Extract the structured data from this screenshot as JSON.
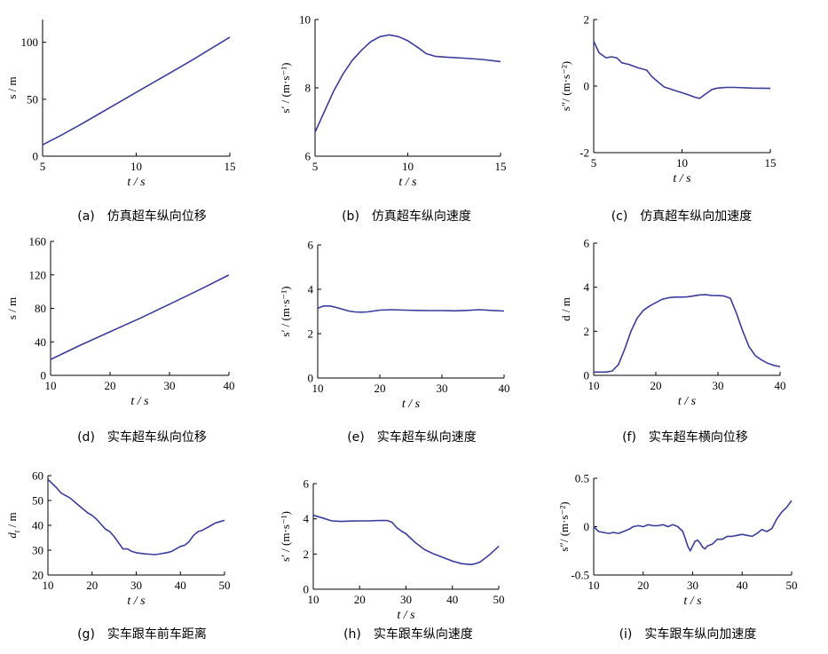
{
  "chart_data": [
    {
      "id": "a",
      "type": "line",
      "caption": "(a)　仿真超车纵向位移",
      "xlabel": "t / s",
      "ylabel": "s / m",
      "xlim": [
        5,
        15
      ],
      "ylim": [
        0,
        120
      ],
      "xticks": [
        5,
        10,
        15
      ],
      "yticks": [
        0,
        50,
        100
      ],
      "x": [
        5,
        6,
        7,
        8,
        9,
        10,
        11,
        12,
        13,
        14,
        15
      ],
      "y": [
        10,
        18.5,
        27.5,
        37,
        46.5,
        56,
        65.5,
        75,
        84.5,
        94.5,
        104.5
      ]
    },
    {
      "id": "b",
      "type": "line",
      "caption": "(b)　仿真超车纵向速度",
      "xlabel": "t / s",
      "ylabel": "s′ / (m·s⁻¹)",
      "xlim": [
        5,
        15
      ],
      "ylim": [
        6,
        10
      ],
      "xticks": [
        5,
        10,
        15
      ],
      "yticks": [
        6,
        8,
        10
      ],
      "x": [
        5,
        5.5,
        6,
        6.5,
        7,
        7.5,
        8,
        8.5,
        9,
        9.5,
        10,
        10.5,
        11,
        11.5,
        12,
        13,
        14,
        15
      ],
      "y": [
        6.7,
        7.3,
        7.9,
        8.4,
        8.8,
        9.1,
        9.35,
        9.5,
        9.55,
        9.5,
        9.38,
        9.2,
        9.0,
        8.92,
        8.9,
        8.87,
        8.83,
        8.77
      ]
    },
    {
      "id": "c",
      "type": "line",
      "caption": "(c)　仿真超车纵向加速度",
      "xlabel": "t / s",
      "ylabel": "s″/ (m·s⁻²)",
      "xlim": [
        5,
        15
      ],
      "ylim": [
        -2,
        2
      ],
      "xticks": [
        5,
        10,
        15
      ],
      "yticks": [
        -2,
        0,
        2
      ],
      "x": [
        5,
        5.3,
        5.7,
        6,
        6.3,
        6.6,
        7,
        7.5,
        8,
        8.3,
        8.7,
        9,
        9.3,
        9.7,
        10,
        10.4,
        10.7,
        11,
        11.3,
        11.7,
        12,
        12.5,
        13,
        14,
        15
      ],
      "y": [
        1.35,
        1.0,
        0.85,
        0.88,
        0.85,
        0.7,
        0.65,
        0.55,
        0.48,
        0.28,
        0.1,
        -0.03,
        -0.08,
        -0.15,
        -0.2,
        -0.27,
        -0.33,
        -0.37,
        -0.25,
        -0.1,
        -0.06,
        -0.04,
        -0.04,
        -0.06,
        -0.07
      ]
    },
    {
      "id": "d",
      "type": "line",
      "caption": "(d)　实车超车纵向位移",
      "xlabel": "t / s",
      "ylabel": "s / m",
      "xlim": [
        10,
        40
      ],
      "ylim": [
        0,
        160
      ],
      "xticks": [
        10,
        20,
        30,
        40
      ],
      "yticks": [
        0,
        40,
        80,
        120,
        160
      ],
      "x": [
        10,
        15,
        20,
        25,
        30,
        35,
        40
      ],
      "y": [
        19,
        36,
        52,
        68,
        85,
        102,
        120
      ]
    },
    {
      "id": "e",
      "type": "line",
      "caption": "(e)　实车超车纵向速度",
      "xlabel": "t / s",
      "ylabel": "s′ / (m·s⁻¹)",
      "xlim": [
        10,
        40
      ],
      "ylim": [
        0,
        6
      ],
      "xticks": [
        10,
        20,
        30,
        40
      ],
      "yticks": [
        0,
        2,
        4,
        6
      ],
      "x": [
        10,
        11,
        12,
        13,
        14,
        15,
        16,
        17,
        18,
        19,
        20,
        22,
        24,
        26,
        28,
        30,
        32,
        34,
        36,
        38,
        40
      ],
      "y": [
        3.15,
        3.25,
        3.25,
        3.18,
        3.1,
        3.02,
        2.98,
        2.97,
        2.98,
        3.02,
        3.06,
        3.08,
        3.06,
        3.05,
        3.04,
        3.04,
        3.03,
        3.05,
        3.08,
        3.05,
        3.02
      ]
    },
    {
      "id": "f",
      "type": "line",
      "caption": "(f)　实车超车横向位移",
      "xlabel": "t / s",
      "ylabel": "d / m",
      "xlim": [
        10,
        40
      ],
      "ylim": [
        0,
        6
      ],
      "xticks": [
        10,
        20,
        30,
        40
      ],
      "yticks": [
        0,
        2,
        4,
        6
      ],
      "x": [
        10,
        12,
        13,
        14,
        15,
        16,
        17,
        18,
        19,
        20,
        21,
        22,
        23,
        24,
        25,
        26,
        27,
        28,
        29,
        30,
        31,
        32,
        33,
        34,
        35,
        36,
        37,
        38,
        39,
        40
      ],
      "y": [
        0.15,
        0.15,
        0.2,
        0.5,
        1.2,
        2.0,
        2.6,
        2.95,
        3.15,
        3.3,
        3.45,
        3.52,
        3.55,
        3.55,
        3.56,
        3.6,
        3.65,
        3.66,
        3.63,
        3.62,
        3.6,
        3.5,
        2.8,
        2.0,
        1.3,
        0.9,
        0.7,
        0.55,
        0.45,
        0.4
      ]
    },
    {
      "id": "g",
      "type": "line",
      "caption": "(g)　实车跟车前车距离",
      "xlabel": "t / s",
      "ylabel": "d_t / m",
      "ylabel_main": "d",
      "ylabel_sub": "t",
      "ylabel_unit": " / m",
      "xlim": [
        10,
        50
      ],
      "ylim": [
        20,
        60
      ],
      "xticks": [
        10,
        20,
        30,
        40,
        50
      ],
      "yticks": [
        20,
        30,
        40,
        50,
        60
      ],
      "x": [
        10,
        12,
        13,
        14,
        15,
        16,
        17,
        18,
        19,
        20,
        21,
        22,
        23,
        24,
        25,
        26,
        27,
        28,
        29,
        30,
        31,
        32,
        33,
        34,
        35,
        36,
        37,
        38,
        39,
        40,
        41,
        42,
        43,
        44,
        45,
        46,
        47,
        48,
        49,
        50
      ],
      "y": [
        58.5,
        55,
        53,
        52,
        51,
        49.5,
        48,
        46.5,
        45,
        44,
        42.5,
        40.5,
        38.5,
        37.5,
        35.5,
        33,
        30.5,
        30.5,
        29.5,
        29,
        28.7,
        28.5,
        28.4,
        28.2,
        28.4,
        28.7,
        29,
        29.5,
        30.5,
        31.5,
        32,
        33.5,
        36,
        37.5,
        38,
        39,
        40,
        41,
        41.5,
        42
      ]
    },
    {
      "id": "h",
      "type": "line",
      "caption": "(h)　实车跟车纵向速度",
      "xlabel": "t / s",
      "ylabel": "s′ / (m·s⁻¹)",
      "xlim": [
        10,
        50
      ],
      "ylim": [
        0,
        6
      ],
      "xticks": [
        10,
        20,
        30,
        40,
        50
      ],
      "yticks": [
        0,
        2,
        4,
        6
      ],
      "x": [
        10,
        12,
        14,
        16,
        18,
        20,
        22,
        24,
        26,
        27,
        28,
        29,
        30,
        31,
        32,
        34,
        36,
        38,
        40,
        42,
        44,
        45,
        46,
        47,
        48,
        49,
        50
      ],
      "y": [
        4.2,
        4.05,
        3.88,
        3.85,
        3.87,
        3.88,
        3.88,
        3.9,
        3.9,
        3.8,
        3.5,
        3.3,
        3.15,
        2.9,
        2.65,
        2.25,
        2.0,
        1.8,
        1.6,
        1.45,
        1.4,
        1.45,
        1.55,
        1.75,
        1.95,
        2.2,
        2.45
      ]
    },
    {
      "id": "i",
      "type": "line",
      "caption": "(i)　实车跟车纵向加速度",
      "xlabel": "t / s",
      "ylabel": "s″/ (m·s⁻²)",
      "xlim": [
        10,
        50
      ],
      "ylim": [
        -0.5,
        0.5
      ],
      "xticks": [
        10,
        20,
        30,
        40,
        50
      ],
      "yticks": [
        -0.5,
        0,
        0.5
      ],
      "x": [
        10,
        11,
        12,
        13,
        14,
        15,
        16,
        17,
        18,
        19,
        20,
        21,
        22,
        23,
        24,
        25,
        26,
        27,
        28,
        28.5,
        29,
        29.5,
        30,
        30.5,
        31,
        31.5,
        32,
        32.5,
        33,
        34,
        35,
        36,
        37,
        38,
        39,
        40,
        41,
        42,
        43,
        44,
        45,
        46,
        47,
        48,
        49,
        50
      ],
      "y": [
        0.0,
        -0.05,
        -0.06,
        -0.07,
        -0.06,
        -0.07,
        -0.05,
        -0.03,
        0.0,
        0.01,
        0.0,
        0.02,
        0.01,
        0.01,
        0.02,
        0.0,
        0.02,
        0.0,
        -0.05,
        -0.12,
        -0.2,
        -0.25,
        -0.2,
        -0.15,
        -0.14,
        -0.17,
        -0.21,
        -0.23,
        -0.2,
        -0.18,
        -0.13,
        -0.13,
        -0.1,
        -0.1,
        -0.09,
        -0.08,
        -0.09,
        -0.1,
        -0.07,
        -0.03,
        -0.05,
        -0.02,
        0.08,
        0.15,
        0.2,
        0.27
      ]
    }
  ]
}
